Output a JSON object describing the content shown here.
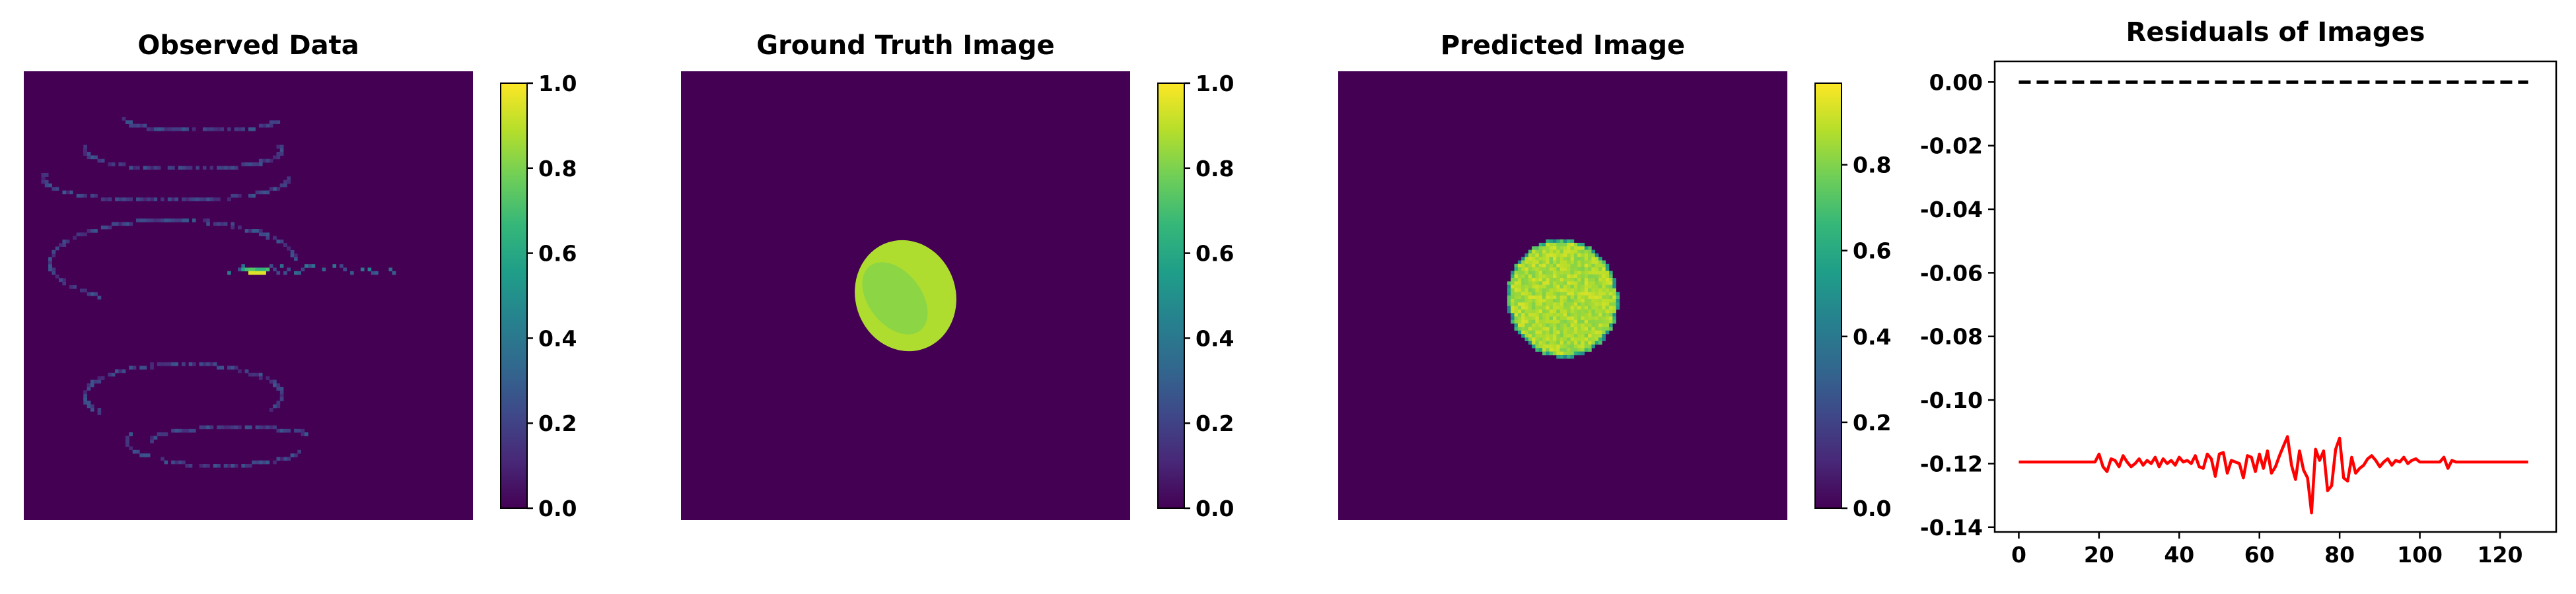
{
  "figure": {
    "background": "#ffffff",
    "colormap": "viridis",
    "colormap_stops": [
      "#440154",
      "#482878",
      "#3e4989",
      "#31688e",
      "#26828e",
      "#1f9e89",
      "#35b779",
      "#6ece58",
      "#b5de2b",
      "#fde725"
    ]
  },
  "chart_data": [
    {
      "type": "heatmap",
      "title": "Observed Data",
      "grid_size": [
        128,
        128
      ],
      "background_value": 0.0,
      "content": "sparse spiral of low-value pixels around the image center with a small bright streak near the center",
      "colorbar": {
        "range": [
          0.0,
          1.0
        ],
        "ticks": [
          0.0,
          0.2,
          0.4,
          0.6,
          0.8,
          1.0
        ],
        "tick_labels": [
          "0.0",
          "0.2",
          "0.4",
          "0.6",
          "0.8",
          "1.0"
        ]
      }
    },
    {
      "type": "heatmap",
      "title": "Ground Truth Image",
      "grid_size": [
        128,
        128
      ],
      "background_value": 0.0,
      "content": "single uniform ellipse near the center with values about 0.8-0.95",
      "colorbar": {
        "range": [
          0.0,
          1.0
        ],
        "ticks": [
          0.0,
          0.2,
          0.4,
          0.6,
          0.8,
          1.0
        ],
        "tick_labels": [
          "0.0",
          "0.2",
          "0.4",
          "0.6",
          "0.8",
          "1.0"
        ]
      }
    },
    {
      "type": "heatmap",
      "title": "Predicted Image",
      "grid_size": [
        128,
        128
      ],
      "background_value": 0.0,
      "content": "single mottled ellipse near the center with values about 0.75-0.95",
      "colorbar": {
        "range": [
          0.0,
          0.99
        ],
        "ticks": [
          0.0,
          0.2,
          0.4,
          0.6,
          0.8
        ],
        "tick_labels": [
          "0.0",
          "0.2",
          "0.4",
          "0.6",
          "0.8"
        ]
      }
    },
    {
      "type": "line",
      "title": "Residuals of Images",
      "xlabel": "",
      "ylabel": "",
      "xlim": [
        -6,
        134
      ],
      "ylim": [
        -0.1415,
        0.0065
      ],
      "xticks": [
        0,
        20,
        40,
        60,
        80,
        100,
        120
      ],
      "yticks": [
        0.0,
        -0.02,
        -0.04,
        -0.06,
        -0.08,
        -0.1,
        -0.12,
        -0.14
      ],
      "ytick_labels": [
        "0.00",
        "-0.02",
        "-0.04",
        "-0.06",
        "-0.08",
        "-0.10",
        "-0.12",
        "-0.14"
      ],
      "reference_line": {
        "y": 0.0,
        "style": "dashed",
        "color": "#000000"
      },
      "series": [
        {
          "color": "#ff0000",
          "x": [
            0,
            1,
            2,
            3,
            4,
            5,
            6,
            7,
            8,
            9,
            10,
            11,
            12,
            13,
            14,
            15,
            16,
            17,
            18,
            19,
            20,
            21,
            22,
            23,
            24,
            25,
            26,
            27,
            28,
            29,
            30,
            31,
            32,
            33,
            34,
            35,
            36,
            37,
            38,
            39,
            40,
            41,
            42,
            43,
            44,
            45,
            46,
            47,
            48,
            49,
            50,
            51,
            52,
            53,
            54,
            55,
            56,
            57,
            58,
            59,
            60,
            61,
            62,
            63,
            64,
            65,
            66,
            67,
            68,
            69,
            70,
            71,
            72,
            73,
            74,
            75,
            76,
            77,
            78,
            79,
            80,
            81,
            82,
            83,
            84,
            85,
            86,
            87,
            88,
            89,
            90,
            91,
            92,
            93,
            94,
            95,
            96,
            97,
            98,
            99,
            100,
            101,
            102,
            103,
            104,
            105,
            106,
            107,
            108,
            109,
            110,
            111,
            112,
            113,
            114,
            115,
            116,
            117,
            118,
            119,
            120,
            121,
            122,
            123,
            124,
            125,
            126,
            127
          ],
          "values": [
            -0.1195,
            -0.1195,
            -0.1195,
            -0.1195,
            -0.1195,
            -0.1195,
            -0.1195,
            -0.1195,
            -0.1195,
            -0.1195,
            -0.1195,
            -0.1195,
            -0.1195,
            -0.1195,
            -0.1195,
            -0.1195,
            -0.1195,
            -0.1195,
            -0.1195,
            -0.1195,
            -0.117,
            -0.121,
            -0.1225,
            -0.1185,
            -0.119,
            -0.121,
            -0.1175,
            -0.1195,
            -0.121,
            -0.12,
            -0.1185,
            -0.1205,
            -0.119,
            -0.12,
            -0.118,
            -0.121,
            -0.1185,
            -0.12,
            -0.119,
            -0.1205,
            -0.118,
            -0.1195,
            -0.119,
            -0.12,
            -0.1175,
            -0.121,
            -0.1215,
            -0.117,
            -0.1185,
            -0.124,
            -0.117,
            -0.1165,
            -0.123,
            -0.119,
            -0.1195,
            -0.12,
            -0.1245,
            -0.1175,
            -0.118,
            -0.1225,
            -0.117,
            -0.1215,
            -0.116,
            -0.123,
            -0.121,
            -0.1175,
            -0.1145,
            -0.1115,
            -0.1205,
            -0.125,
            -0.116,
            -0.122,
            -0.1245,
            -0.1355,
            -0.1155,
            -0.119,
            -0.116,
            -0.1285,
            -0.127,
            -0.1155,
            -0.112,
            -0.1245,
            -0.1255,
            -0.118,
            -0.123,
            -0.1215,
            -0.1205,
            -0.1185,
            -0.1175,
            -0.119,
            -0.121,
            -0.1195,
            -0.1185,
            -0.1205,
            -0.119,
            -0.1195,
            -0.118,
            -0.12,
            -0.119,
            -0.1185,
            -0.1195,
            -0.1195,
            -0.1195,
            -0.1195,
            -0.1195,
            -0.1195,
            -0.118,
            -0.1215,
            -0.119,
            -0.1195,
            -0.1195,
            -0.1195,
            -0.1195,
            -0.1195,
            -0.1195,
            -0.1195,
            -0.1195,
            -0.1195,
            -0.1195,
            -0.1195,
            -0.1195,
            -0.1195,
            -0.1195,
            -0.1195,
            -0.1195,
            -0.1195,
            -0.1195,
            -0.1195
          ]
        }
      ]
    }
  ]
}
